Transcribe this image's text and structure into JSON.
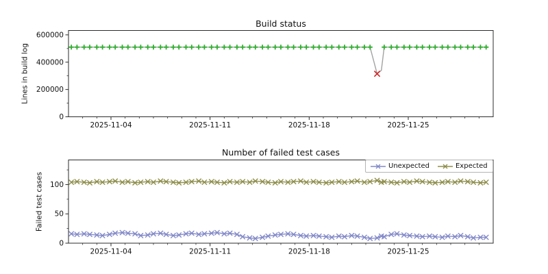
{
  "figure": {
    "background": "#ffffff",
    "text_color": "#111111",
    "spine_color": "#2b2b2b"
  },
  "chart_data": [
    {
      "type": "line",
      "title": "Build status",
      "xlabel": "",
      "ylabel": "Lines in build log",
      "x_unit": "days since 2025-11-01",
      "xlim": [
        0,
        30
      ],
      "ylim": [
        0,
        632000
      ],
      "grid": false,
      "x_ticks": [
        {
          "day": 3,
          "label": "2025-11-04"
        },
        {
          "day": 10,
          "label": "2025-11-11"
        },
        {
          "day": 17,
          "label": "2025-11-18"
        },
        {
          "day": 24,
          "label": "2025-11-25"
        }
      ],
      "x_minor_step": 1,
      "y_ticks": [
        {
          "v": 0,
          "label": "0"
        },
        {
          "v": 200000,
          "label": "200000"
        },
        {
          "v": 400000,
          "label": "400000"
        },
        {
          "v": 600000,
          "label": "600000"
        }
      ],
      "y_minor_step": 100000,
      "series": [
        {
          "name": "builds",
          "line_color": "#a2a2a2",
          "marker": "plus",
          "marker_color": "#2fad2f",
          "failed_marker": "x",
          "failed_color": "#cf2c2c",
          "days": [
            0.2,
            0.6,
            1.1,
            1.5,
            2.0,
            2.4,
            2.9,
            3.3,
            3.8,
            4.2,
            4.7,
            5.1,
            5.6,
            6.0,
            6.5,
            6.9,
            7.4,
            7.8,
            8.3,
            8.7,
            9.2,
            9.6,
            10.1,
            10.5,
            11.0,
            11.4,
            11.9,
            12.3,
            12.8,
            13.2,
            13.7,
            14.1,
            14.6,
            15.0,
            15.5,
            15.9,
            16.4,
            16.8,
            17.3,
            17.7,
            18.2,
            18.6,
            19.1,
            19.5,
            20.0,
            20.4,
            20.9,
            21.3,
            21.8,
            22.1,
            22.3,
            22.8,
            23.2,
            23.7,
            24.1,
            24.6,
            25.0,
            25.5,
            25.9,
            26.4,
            26.8,
            27.3,
            27.7,
            28.2,
            28.6,
            29.1,
            29.5
          ],
          "values": [
            510000,
            510000,
            510000,
            510000,
            510000,
            510000,
            510000,
            510000,
            510000,
            510000,
            510000,
            510000,
            510000,
            510000,
            510000,
            510000,
            510000,
            510000,
            510000,
            510000,
            510000,
            510000,
            510000,
            510000,
            510000,
            510000,
            510000,
            510000,
            510000,
            510000,
            510000,
            510000,
            510000,
            510000,
            510000,
            510000,
            510000,
            510000,
            510000,
            510000,
            510000,
            510000,
            510000,
            510000,
            510000,
            510000,
            510000,
            510000,
            315000,
            340000,
            510000,
            510000,
            510000,
            510000,
            510000,
            510000,
            510000,
            510000,
            510000,
            510000,
            510000,
            510000,
            510000,
            510000,
            510000,
            510000,
            510000
          ],
          "failed_indices": [
            48
          ],
          "unmarked_indices": [
            49
          ]
        }
      ]
    },
    {
      "type": "line",
      "title": "Number of failed test cases",
      "xlabel": "",
      "ylabel": "Failed test cases",
      "x_unit": "days since 2025-11-01",
      "xlim": [
        0,
        30
      ],
      "ylim": [
        0,
        142
      ],
      "grid": false,
      "legend": {
        "position": "upper right",
        "entries": [
          "Unexpected",
          "Expected"
        ]
      },
      "x_ticks": [
        {
          "day": 3,
          "label": "2025-11-04"
        },
        {
          "day": 10,
          "label": "2025-11-11"
        },
        {
          "day": 17,
          "label": "2025-11-18"
        },
        {
          "day": 24,
          "label": "2025-11-25"
        }
      ],
      "x_minor_step": 1,
      "y_ticks": [
        {
          "v": 0,
          "label": "0"
        },
        {
          "v": 50,
          "label": "50"
        },
        {
          "v": 100,
          "label": "100"
        }
      ],
      "y_minor_step": 25,
      "days": [
        0.2,
        0.6,
        1.1,
        1.5,
        2.0,
        2.4,
        2.9,
        3.3,
        3.8,
        4.2,
        4.7,
        5.1,
        5.6,
        6.0,
        6.5,
        6.9,
        7.4,
        7.8,
        8.3,
        8.7,
        9.2,
        9.6,
        10.1,
        10.5,
        11.0,
        11.4,
        11.9,
        12.3,
        12.8,
        13.2,
        13.7,
        14.1,
        14.6,
        15.0,
        15.5,
        15.9,
        16.4,
        16.8,
        17.3,
        17.7,
        18.2,
        18.6,
        19.1,
        19.5,
        20.0,
        20.4,
        20.9,
        21.3,
        21.8,
        22.1,
        22.3,
        22.8,
        23.2,
        23.7,
        24.1,
        24.6,
        25.0,
        25.5,
        25.9,
        26.4,
        26.8,
        27.3,
        27.7,
        28.2,
        28.6,
        29.1,
        29.5
      ],
      "series": [
        {
          "name": "Unexpected",
          "color": "#8289c8",
          "marker": "x",
          "values": [
            16,
            15,
            16,
            15,
            14,
            13,
            15,
            17,
            18,
            17,
            16,
            13,
            14,
            16,
            17,
            15,
            13,
            14,
            16,
            17,
            15,
            16,
            17,
            18,
            16,
            17,
            15,
            11,
            9,
            8,
            10,
            12,
            14,
            15,
            16,
            15,
            13,
            12,
            13,
            12,
            11,
            10,
            12,
            11,
            13,
            12,
            10,
            8,
            9,
            12,
            11,
            15,
            16,
            14,
            13,
            12,
            11,
            12,
            11,
            10,
            12,
            11,
            13,
            11,
            9,
            10,
            10
          ]
        },
        {
          "name": "Expected",
          "color": "#8d8d4a",
          "marker": "x",
          "values": [
            104,
            105,
            104,
            103,
            105,
            104,
            105,
            106,
            104,
            105,
            103,
            104,
            105,
            104,
            106,
            105,
            104,
            103,
            104,
            105,
            106,
            104,
            105,
            104,
            103,
            105,
            104,
            105,
            104,
            106,
            105,
            104,
            103,
            105,
            104,
            105,
            106,
            104,
            105,
            104,
            103,
            104,
            105,
            104,
            105,
            106,
            104,
            105,
            107,
            104,
            105,
            104,
            103,
            105,
            104,
            106,
            105,
            104,
            103,
            104,
            105,
            104,
            106,
            105,
            104,
            103,
            104
          ]
        }
      ]
    }
  ]
}
